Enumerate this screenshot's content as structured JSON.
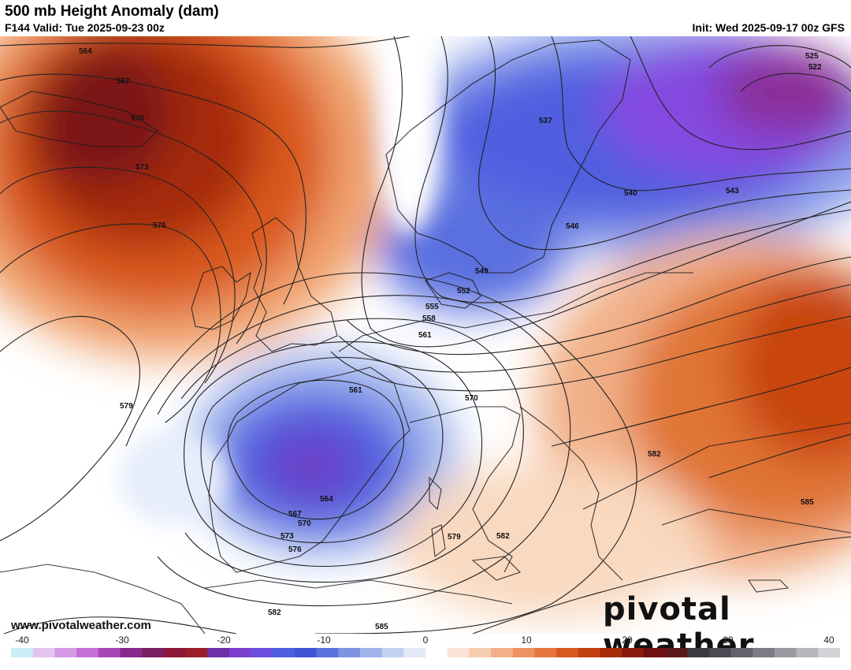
{
  "header": {
    "title": "500 mb Height Anomaly (dam)",
    "valid": "F144 Valid: Tue 2025-09-23 00z",
    "init": "Init: Wed 2025-09-17 00z GFS"
  },
  "footer": {
    "website": "www.pivotalweather.com",
    "brand": "pivotal weather"
  },
  "colorbar": {
    "min": -40,
    "max": 40,
    "tick_labels": [
      "-40",
      "-30",
      "-20",
      "-10",
      "0",
      "10",
      "20",
      "30",
      "40"
    ],
    "colors": [
      "#c9eef6",
      "#e3c4f0",
      "#d69ae6",
      "#c66fd8",
      "#a845b8",
      "#872a8c",
      "#7a2065",
      "#8c1736",
      "#9c1e2a",
      "#6e2fa8",
      "#7e3fd0",
      "#6a4fe0",
      "#4f5fe0",
      "#4054d8",
      "#5a73dc",
      "#7d94e4",
      "#a0b4ec",
      "#c2d0f2",
      "#e2e8f8",
      "#ffffff",
      "#fbe4d6",
      "#f7cdb0",
      "#f3b088",
      "#ee9360",
      "#e6763b",
      "#d9581f",
      "#c23f10",
      "#a62a0a",
      "#8a1a0c",
      "#701012",
      "#5a1a1a",
      "#3a3a40",
      "#4a4a52",
      "#62626a",
      "#7c7c84",
      "#9a9aa2",
      "#b6b6bc",
      "#d2d2d6"
    ]
  },
  "contour_labels": [
    "564",
    "567",
    "570",
    "573",
    "576",
    "579",
    "537",
    "540",
    "543",
    "546",
    "549",
    "552",
    "555",
    "558",
    "561",
    "525",
    "522",
    "561",
    "567",
    "570",
    "573",
    "576",
    "564",
    "570",
    "579",
    "582",
    "582",
    "585",
    "582",
    "585",
    "579",
    "582"
  ],
  "regions": {
    "ridge": "positive height anomaly over North Atlantic",
    "trough_north": "negative anomaly over Scandinavia / Russia",
    "cutoff_low": "negative anomaly over Iberia"
  }
}
